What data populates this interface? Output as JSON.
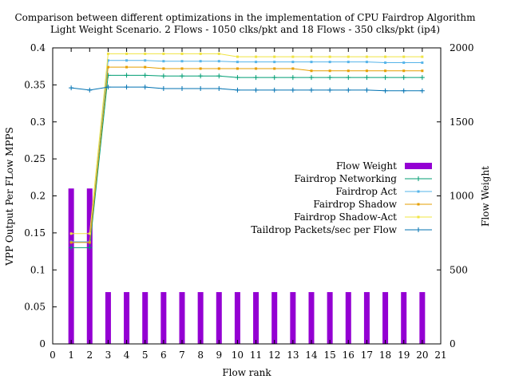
{
  "chart_data": {
    "type": "bar+line",
    "title_line1": "Comparison between different optimizations in the implementation of CPU Fairdrop Algorithm",
    "title_line2": "Light Weight Scenario. 2 Flows - 1050 clks/pkt and 18 Flows - 350 clks/pkt (ip4)",
    "xlabel": "Flow rank",
    "ylabel": "VPP Output Per FLow MPPS",
    "y2label": "Flow Weight",
    "xlim": [
      0,
      21
    ],
    "ylim": [
      0,
      0.4
    ],
    "y2lim": [
      0,
      2000
    ],
    "x_ticks": [
      "0",
      "1",
      "2",
      "3",
      "4",
      "5",
      "6",
      "7",
      "8",
      "9",
      "10",
      "11",
      "12",
      "13",
      "14",
      "15",
      "16",
      "17",
      "18",
      "19",
      "20",
      "21"
    ],
    "y_ticks": [
      "0",
      "0.05",
      "0.1",
      "0.15",
      "0.2",
      "0.25",
      "0.3",
      "0.35",
      "0.4"
    ],
    "y2_ticks": [
      "0",
      "500",
      "1000",
      "1500",
      "2000"
    ],
    "x": [
      1,
      2,
      3,
      4,
      5,
      6,
      7,
      8,
      9,
      10,
      11,
      12,
      13,
      14,
      15,
      16,
      17,
      18,
      19,
      20
    ],
    "bars": {
      "name": "Flow Weight",
      "color": "#9400d3",
      "values": [
        1050,
        1050,
        350,
        350,
        350,
        350,
        350,
        350,
        350,
        350,
        350,
        350,
        350,
        350,
        350,
        350,
        350,
        350,
        350,
        350
      ]
    },
    "series": [
      {
        "name": "Fairdrop Networking",
        "color": "#009e73",
        "marker": "plus",
        "values": [
          0.13,
          0.13,
          0.363,
          0.363,
          0.363,
          0.362,
          0.362,
          0.362,
          0.362,
          0.36,
          0.36,
          0.36,
          0.36,
          0.36,
          0.36,
          0.36,
          0.36,
          0.36,
          0.36,
          0.36
        ]
      },
      {
        "name": "Fairdrop Act",
        "color": "#56b4e9",
        "marker": "square",
        "values": [
          0.138,
          0.138,
          0.383,
          0.383,
          0.383,
          0.382,
          0.382,
          0.382,
          0.382,
          0.381,
          0.381,
          0.381,
          0.381,
          0.381,
          0.381,
          0.381,
          0.381,
          0.38,
          0.38,
          0.38
        ]
      },
      {
        "name": "Fairdrop Shadow",
        "color": "#e69f00",
        "marker": "square",
        "values": [
          0.137,
          0.137,
          0.374,
          0.374,
          0.374,
          0.372,
          0.372,
          0.372,
          0.372,
          0.372,
          0.372,
          0.372,
          0.372,
          0.369,
          0.369,
          0.369,
          0.369,
          0.369,
          0.369,
          0.369
        ]
      },
      {
        "name": "Fairdrop Shadow-Act",
        "color": "#f0e442",
        "marker": "square",
        "values": [
          0.149,
          0.149,
          0.392,
          0.392,
          0.392,
          0.392,
          0.392,
          0.392,
          0.392,
          0.388,
          0.388,
          0.388,
          0.388,
          0.388,
          0.388,
          0.388,
          0.388,
          0.388,
          0.388,
          0.388
        ]
      },
      {
        "name": "Taildrop Packets/sec per Flow",
        "color": "#0072b2",
        "marker": "plus",
        "values": [
          0.346,
          0.343,
          0.347,
          0.347,
          0.347,
          0.345,
          0.345,
          0.345,
          0.345,
          0.343,
          0.343,
          0.343,
          0.343,
          0.343,
          0.343,
          0.343,
          0.343,
          0.342,
          0.342,
          0.342
        ]
      }
    ],
    "legend_position": "right-middle"
  }
}
